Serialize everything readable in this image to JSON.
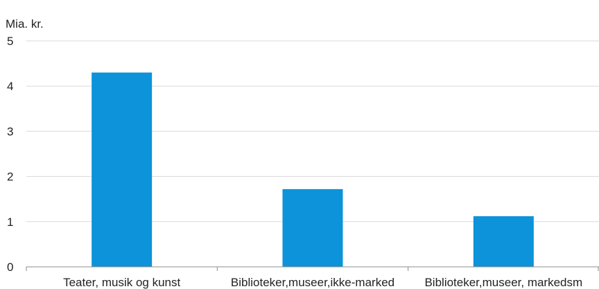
{
  "chart_data": {
    "type": "bar",
    "unit_label": "Mia. kr.",
    "categories": [
      "Teater, musik og kunst",
      "Biblioteker,museer,ikke-marked",
      "Biblioteker,museer, markedsm"
    ],
    "values": [
      4.3,
      1.72,
      1.12
    ],
    "ylim": [
      0,
      5
    ],
    "yticks": [
      0,
      1,
      2,
      3,
      4,
      5
    ],
    "grid": true,
    "legend": "none",
    "colors": {
      "bar": "#0c93d9",
      "grid": "#d9d9d9",
      "axis": "#8c8c8c"
    }
  }
}
